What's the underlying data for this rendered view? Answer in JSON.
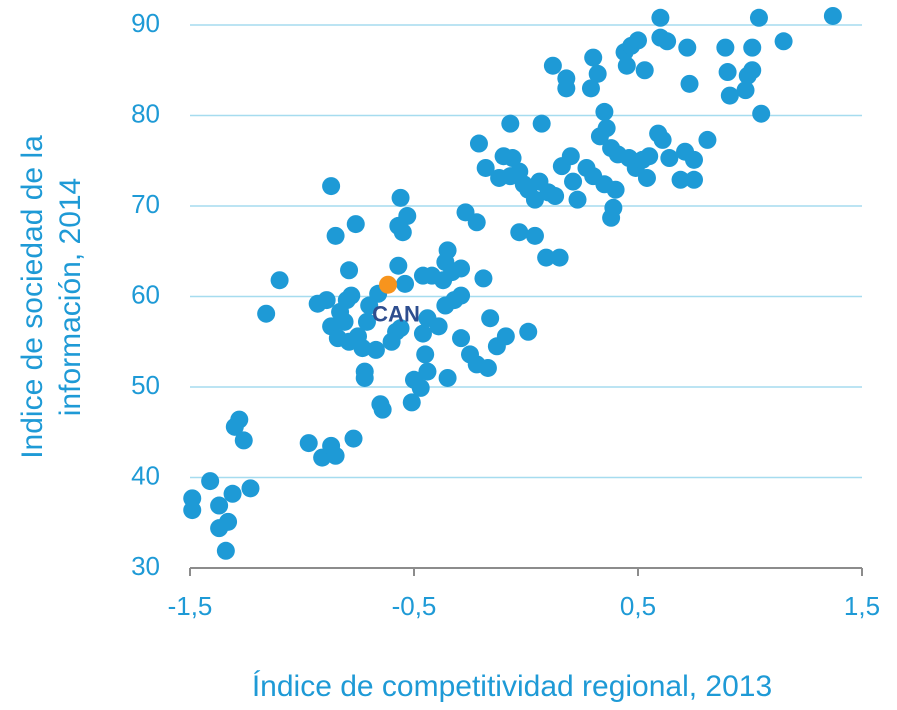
{
  "chart_data": {
    "type": "scatter",
    "xlabel": "Índice de competitividad regional, 2013",
    "ylabel": [
      "Indice de sociedad de la",
      "información, 2014"
    ],
    "xlim": [
      -1.5,
      1.5
    ],
    "xticks": [
      {
        "value": -1.5,
        "label": "-1,5"
      },
      {
        "value": -0.5,
        "label": "-0,5"
      },
      {
        "value": 0.5,
        "label": "0,5"
      },
      {
        "value": 1.5,
        "label": "1,5"
      }
    ],
    "ylim": [
      30,
      90
    ],
    "yticks": [
      30,
      40,
      50,
      60,
      70,
      80,
      90
    ],
    "grid": true,
    "series": [
      {
        "color": "#1e9ad6",
        "x": [
          -1.49,
          -1.49,
          -1.41,
          -1.37,
          -1.37,
          -1.33,
          -1.34,
          -1.31,
          -1.23,
          -1.3,
          -1.28,
          -1.26,
          -1.16,
          -1.1,
          -0.97,
          -0.91,
          -0.87,
          -0.85,
          -0.77,
          -0.87,
          -0.85,
          -0.76,
          -0.79,
          -0.93,
          -0.89,
          -0.87,
          -0.83,
          -0.84,
          -0.8,
          -0.81,
          -0.78,
          -0.79,
          -0.75,
          -0.73,
          -0.72,
          -0.72,
          -0.67,
          -0.71,
          -0.66,
          -0.7,
          -0.65,
          -0.64,
          -0.58,
          -0.6,
          -0.56,
          -0.57,
          -0.54,
          -0.57,
          -0.56,
          -0.53,
          -0.55,
          -0.51,
          -0.5,
          -0.47,
          -0.44,
          -0.45,
          -0.46,
          -0.39,
          -0.44,
          -0.46,
          -0.42,
          -0.35,
          -0.36,
          -0.37,
          -0.33,
          -0.29,
          -0.36,
          -0.32,
          -0.29,
          -0.35,
          -0.27,
          -0.22,
          -0.29,
          -0.25,
          -0.22,
          -0.17,
          -0.19,
          -0.21,
          -0.18,
          -0.16,
          -0.13,
          -0.09,
          0.01,
          -0.07,
          -0.06,
          -0.07,
          -0.03,
          -0.03,
          0.01,
          0.04,
          0.04,
          0.07,
          0.06,
          0.09,
          0.1,
          0.12,
          0.13,
          0.15,
          0.16,
          0.18,
          0.18,
          0.2,
          0.21,
          0.23,
          0.27,
          0.29,
          0.3,
          0.32,
          0.3,
          0.35,
          0.33,
          0.35,
          0.36,
          0.38,
          0.39,
          0.38,
          0.4,
          0.41,
          0.44,
          0.45,
          0.46,
          0.47,
          0.49,
          0.5,
          0.52,
          0.53,
          0.54,
          0.55,
          0.59,
          0.6,
          0.6,
          0.61,
          0.63,
          0.64,
          0.69,
          0.71,
          0.72,
          0.73,
          0.75,
          0.75,
          0.81,
          0.89,
          0.9,
          0.91,
          0.98,
          0.99,
          1.01,
          1.01,
          1.04,
          1.05,
          1.15,
          1.37,
          -0.12,
          -0.1,
          -0.01
        ],
        "values": [
          37.7,
          36.4,
          39.6,
          36.9,
          34.4,
          35.1,
          31.9,
          38.2,
          38.8,
          45.6,
          46.4,
          44.1,
          58.1,
          61.8,
          43.8,
          42.2,
          43.5,
          42.4,
          44.3,
          72.2,
          66.7,
          68.0,
          62.9,
          59.2,
          59.6,
          56.7,
          58.3,
          55.4,
          59.6,
          57.2,
          60.1,
          55.0,
          55.6,
          54.3,
          51.7,
          51.0,
          54.1,
          57.2,
          60.3,
          59.0,
          48.1,
          47.5,
          56.1,
          55.0,
          56.5,
          63.4,
          61.4,
          67.8,
          70.9,
          68.9,
          67.1,
          48.3,
          50.8,
          49.9,
          51.7,
          53.6,
          55.9,
          56.7,
          57.6,
          62.3,
          62.3,
          65.1,
          63.8,
          61.8,
          62.7,
          63.1,
          59.0,
          59.6,
          60.1,
          51.0,
          69.3,
          68.2,
          55.4,
          53.6,
          52.5,
          52.1,
          62.0,
          76.9,
          74.2,
          57.6,
          54.5,
          55.6,
          56.1,
          79.1,
          75.3,
          73.3,
          73.8,
          67.1,
          71.8,
          70.7,
          66.7,
          79.1,
          72.7,
          64.3,
          71.5,
          85.5,
          71.1,
          64.3,
          74.4,
          84.1,
          83.0,
          75.5,
          72.7,
          70.7,
          74.2,
          83.0,
          86.4,
          84.6,
          73.3,
          72.4,
          77.7,
          80.4,
          78.6,
          68.7,
          69.8,
          76.4,
          71.8,
          75.7,
          87.0,
          85.5,
          75.3,
          87.7,
          74.2,
          88.3,
          75.1,
          85.0,
          73.1,
          75.5,
          78.0,
          90.8,
          88.6,
          77.3,
          88.2,
          75.3,
          72.9,
          76.0,
          87.5,
          83.5,
          75.1,
          72.9,
          77.3,
          87.5,
          84.8,
          82.2,
          82.8,
          84.4,
          87.5,
          85.0,
          90.8,
          80.2,
          88.2,
          91.0,
          73.1,
          75.5,
          72.4
        ]
      },
      {
        "name": "CAN",
        "color": "#f7941d",
        "x": [
          -0.616
        ],
        "values": [
          61.3
        ]
      }
    ]
  }
}
